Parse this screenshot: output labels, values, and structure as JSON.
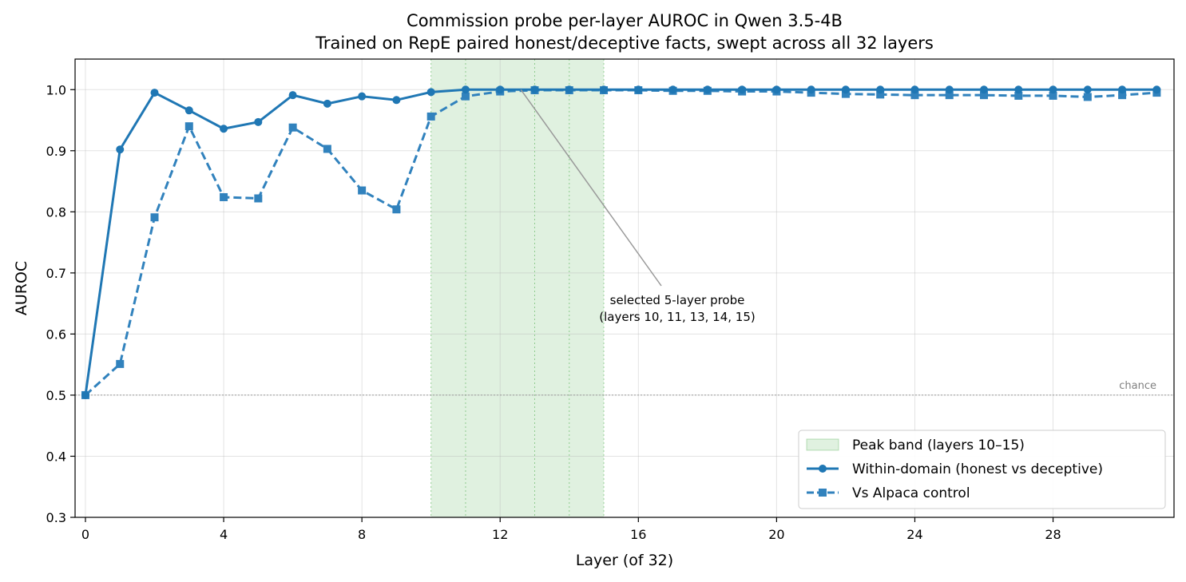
{
  "chart_data": {
    "type": "line",
    "title": "Commission probe per-layer AUROC in Qwen 3.5-4B",
    "subtitle": "Trained on RepE paired honest/deceptive facts, swept across all 32 layers",
    "xlabel": "Layer (of 32)",
    "ylabel": "AUROC",
    "xlim": [
      -0.3,
      31.5
    ],
    "ylim": [
      0.3,
      1.05
    ],
    "xticks": [
      0,
      4,
      8,
      12,
      16,
      20,
      24,
      28
    ],
    "yticks": [
      0.3,
      0.4,
      0.5,
      0.6,
      0.7,
      0.8,
      0.9,
      1.0
    ],
    "ytick_labels": [
      "0.3",
      "0.4",
      "0.5",
      "0.6",
      "0.7",
      "0.8",
      "0.9",
      "1.0"
    ],
    "grid": true,
    "legend_position": "bottom-right",
    "x": [
      0,
      1,
      2,
      3,
      4,
      5,
      6,
      7,
      8,
      9,
      10,
      11,
      12,
      13,
      14,
      15,
      16,
      17,
      18,
      19,
      20,
      21,
      22,
      23,
      24,
      25,
      26,
      27,
      28,
      29,
      30,
      31
    ],
    "series": [
      {
        "name": "Within-domain (honest vs deceptive)",
        "color": "#1f77b4",
        "line_style": "solid",
        "marker": "circle",
        "values": [
          0.5,
          0.902,
          0.995,
          0.966,
          0.936,
          0.947,
          0.991,
          0.977,
          0.989,
          0.983,
          0.996,
          1.0,
          1.0,
          1.0,
          1.0,
          1.0,
          1.0,
          1.0,
          1.0,
          1.0,
          1.0,
          1.0,
          1.0,
          1.0,
          1.0,
          1.0,
          1.0,
          1.0,
          1.0,
          1.0,
          1.0,
          1.0
        ]
      },
      {
        "name": "Vs Alpaca control",
        "color": "#3182bd",
        "line_style": "dashed",
        "marker": "square",
        "values": [
          0.5,
          0.551,
          0.791,
          0.94,
          0.824,
          0.822,
          0.938,
          0.903,
          0.835,
          0.804,
          0.956,
          0.989,
          0.997,
          0.999,
          0.999,
          0.999,
          0.999,
          0.998,
          0.998,
          0.997,
          0.997,
          0.995,
          0.993,
          0.992,
          0.991,
          0.991,
          0.991,
          0.99,
          0.99,
          0.988,
          0.991,
          0.995
        ]
      }
    ],
    "peak_band": {
      "label": "Peak band (layers 10–15)",
      "x_start": 10,
      "x_end": 15,
      "color": "#2ca02c",
      "selected_layers": [
        10,
        11,
        13,
        14,
        15
      ]
    },
    "chance": {
      "label": "chance",
      "value": 0.5
    },
    "annotation": {
      "line1": "selected 5-layer probe",
      "line2": "(layers 10, 11, 13, 14, 15)",
      "arrow_target_x": 12.6,
      "arrow_target_y": 1.0
    }
  }
}
